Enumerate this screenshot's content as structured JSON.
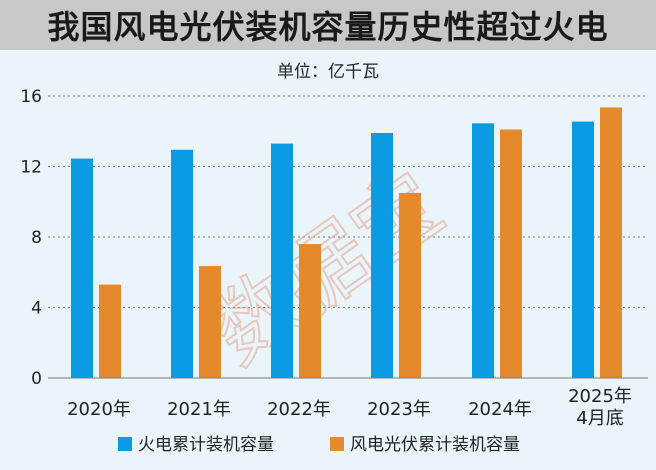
{
  "header": {
    "title": "我国风电光伏装机容量历史性超过火电"
  },
  "watermark": "数据宝",
  "chart_data": {
    "type": "bar",
    "unit_label": "单位：亿千瓦",
    "categories": [
      "2020年",
      "2021年",
      "2022年",
      "2023年",
      "2024年",
      "2025年\n4月底"
    ],
    "series": [
      {
        "name": "火电累计装机容量",
        "color": "#0b9be3",
        "values": [
          12.45,
          12.95,
          13.3,
          13.9,
          14.45,
          14.55
        ]
      },
      {
        "name": "风电光伏累计装机容量",
        "color": "#e58a2c",
        "values": [
          5.3,
          6.35,
          7.6,
          10.5,
          14.1,
          15.35
        ]
      }
    ],
    "ylim": [
      0,
      16
    ],
    "yticks": [
      "0",
      "4",
      "8",
      "12",
      "16"
    ],
    "grid": true,
    "legend_position": "bottom"
  }
}
